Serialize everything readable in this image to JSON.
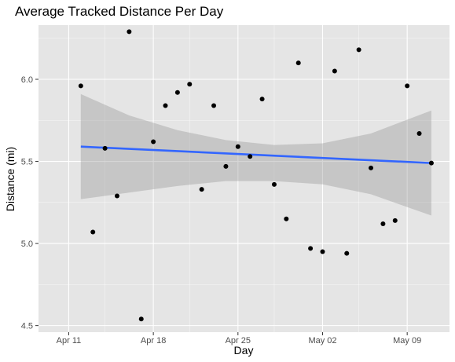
{
  "chart_data": {
    "type": "scatter",
    "title": "Average Tracked Distance Per Day",
    "xlabel": "Day",
    "ylabel": "Distance (mi)",
    "x_ticks": [
      {
        "label": "Apr 11",
        "date": "2021-04-11"
      },
      {
        "label": "Apr 18",
        "date": "2021-04-18"
      },
      {
        "label": "Apr 25",
        "date": "2021-04-25"
      },
      {
        "label": "May 02",
        "date": "2021-05-02"
      },
      {
        "label": "May 09",
        "date": "2021-05-09"
      }
    ],
    "y_ticks": [
      4.5,
      5.0,
      5.5,
      6.0
    ],
    "xlim": [
      "2021-04-10",
      "2021-05-11"
    ],
    "ylim": [
      4.46,
      6.33
    ],
    "grid": true,
    "colors": {
      "panel": "#e5e5e5",
      "grid_major": "#ffffff",
      "points": "#000000",
      "trend": "#3366ff",
      "ribbon": "#999999"
    },
    "points": [
      {
        "x": "2021-04-12",
        "y": 5.96
      },
      {
        "x": "2021-04-13",
        "y": 5.07
      },
      {
        "x": "2021-04-14",
        "y": 5.58
      },
      {
        "x": "2021-04-15",
        "y": 5.29
      },
      {
        "x": "2021-04-16",
        "y": 6.29
      },
      {
        "x": "2021-04-17",
        "y": 4.54
      },
      {
        "x": "2021-04-18",
        "y": 5.62
      },
      {
        "x": "2021-04-19",
        "y": 5.84
      },
      {
        "x": "2021-04-20",
        "y": 5.92
      },
      {
        "x": "2021-04-21",
        "y": 5.97
      },
      {
        "x": "2021-04-22",
        "y": 5.33
      },
      {
        "x": "2021-04-23",
        "y": 5.84
      },
      {
        "x": "2021-04-24",
        "y": 5.47
      },
      {
        "x": "2021-04-25",
        "y": 5.59
      },
      {
        "x": "2021-04-26",
        "y": 5.53
      },
      {
        "x": "2021-04-27",
        "y": 5.88
      },
      {
        "x": "2021-04-28",
        "y": 5.36
      },
      {
        "x": "2021-04-29",
        "y": 5.15
      },
      {
        "x": "2021-04-30",
        "y": 6.1
      },
      {
        "x": "2021-05-01",
        "y": 4.97
      },
      {
        "x": "2021-05-02",
        "y": 4.95
      },
      {
        "x": "2021-05-03",
        "y": 6.05
      },
      {
        "x": "2021-05-04",
        "y": 4.94
      },
      {
        "x": "2021-05-05",
        "y": 6.18
      },
      {
        "x": "2021-05-06",
        "y": 5.46
      },
      {
        "x": "2021-05-07",
        "y": 5.12
      },
      {
        "x": "2021-05-08",
        "y": 5.14
      },
      {
        "x": "2021-05-09",
        "y": 5.96
      },
      {
        "x": "2021-05-10",
        "y": 5.67
      },
      {
        "x": "2021-05-11",
        "y": 5.49
      }
    ],
    "trend": {
      "method": "linear",
      "start": {
        "x": "2021-04-12",
        "y": 5.59
      },
      "end": {
        "x": "2021-05-11",
        "y": 5.49
      }
    },
    "confidence_band": [
      {
        "x": "2021-04-12",
        "lower": 5.27,
        "upper": 5.91
      },
      {
        "x": "2021-04-16",
        "lower": 5.31,
        "upper": 5.78
      },
      {
        "x": "2021-04-20",
        "lower": 5.35,
        "upper": 5.69
      },
      {
        "x": "2021-04-24",
        "lower": 5.38,
        "upper": 5.63
      },
      {
        "x": "2021-04-28",
        "lower": 5.38,
        "upper": 5.6
      },
      {
        "x": "2021-05-02",
        "lower": 5.36,
        "upper": 5.61
      },
      {
        "x": "2021-05-06",
        "lower": 5.3,
        "upper": 5.67
      },
      {
        "x": "2021-05-11",
        "lower": 5.17,
        "upper": 5.81
      }
    ]
  }
}
